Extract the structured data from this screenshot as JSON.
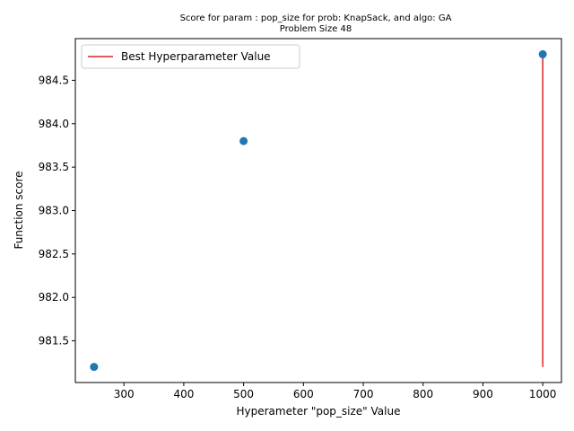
{
  "chart_data": {
    "type": "scatter",
    "title_line1": "Score for param : pop_size for prob: KnapSack, and algo: GA",
    "title_line2": "Problem Size 48",
    "xlabel": "Hyperameter \"pop_size\" Value",
    "ylabel": "Function score",
    "xlim": [
      218.75,
      1031.25
    ],
    "ylim": [
      981.02,
      484.98
    ],
    "x_ticks": [
      300,
      400,
      500,
      600,
      700,
      800,
      900,
      1000
    ],
    "y_ticks": [
      981.5,
      982.0,
      982.5,
      983.0,
      983.5,
      984.0,
      984.5
    ],
    "y_tick_labels": [
      "981.5",
      "982.0",
      "982.5",
      "983.0",
      "983.5",
      "984.0",
      "984.5"
    ],
    "points": [
      {
        "x": 250,
        "y": 981.2
      },
      {
        "x": 500,
        "y": 983.8
      },
      {
        "x": 1000,
        "y": 984.8
      }
    ],
    "point_color": "#1f77b4",
    "best_line": {
      "x": 1000,
      "y_min": 981.2,
      "y_max": 984.8,
      "color": "#d62728"
    },
    "legend": {
      "label": "Best Hyperparameter Value",
      "placement": "upper-left"
    },
    "grid": false
  }
}
